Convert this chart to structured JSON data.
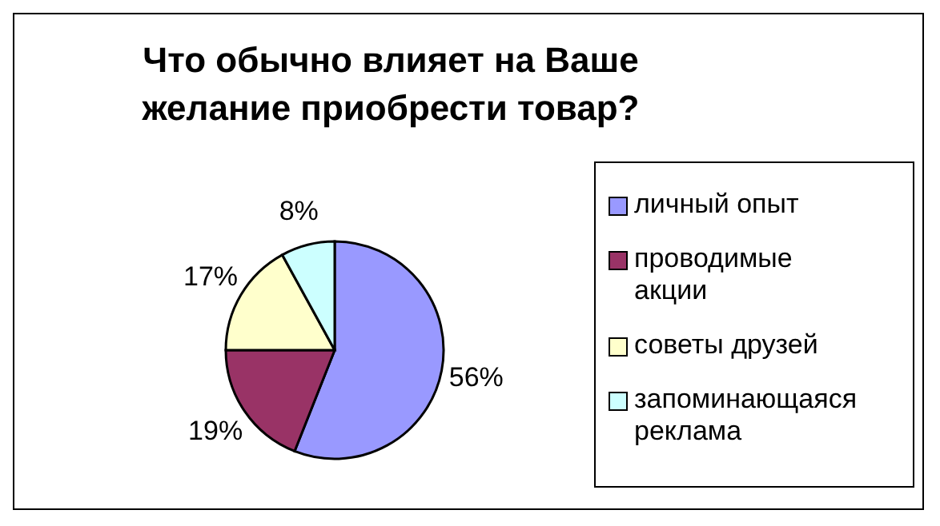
{
  "chart_data": {
    "type": "pie",
    "title": "Что обычно влияет на Ваше\nжелание приобрести товар?",
    "categories": [
      "личный опыт",
      "проводимые акции",
      "советы друзей",
      "запоминающаяся реклама"
    ],
    "values": [
      56,
      19,
      17,
      8
    ],
    "value_labels": [
      "56%",
      "19%",
      "17%",
      "8%"
    ],
    "colors": [
      "#9999ff",
      "#993366",
      "#ffffcc",
      "#ccffff"
    ],
    "legend": "right"
  }
}
